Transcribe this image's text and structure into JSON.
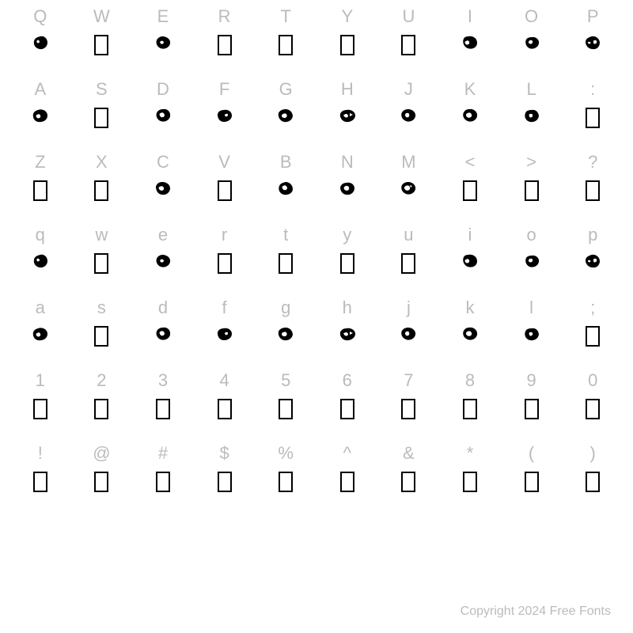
{
  "copyright": "Copyright 2024 Free Fonts",
  "label_color": "#bbbbbb",
  "glyph_border_color": "#000000",
  "blob_fill_color": "#000000",
  "background_color": "#ffffff",
  "label_fontsize": 22,
  "copyright_fontsize": 16,
  "rows": [
    [
      {
        "label": "Q",
        "type": "blob",
        "variant": 1
      },
      {
        "label": "W",
        "type": "box"
      },
      {
        "label": "E",
        "type": "blob",
        "variant": 2
      },
      {
        "label": "R",
        "type": "box"
      },
      {
        "label": "T",
        "type": "box"
      },
      {
        "label": "Y",
        "type": "box"
      },
      {
        "label": "U",
        "type": "box"
      },
      {
        "label": "I",
        "type": "blob",
        "variant": 3
      },
      {
        "label": "O",
        "type": "blob",
        "variant": 4
      },
      {
        "label": "P",
        "type": "blob",
        "variant": 5
      }
    ],
    [
      {
        "label": "A",
        "type": "blob",
        "variant": 6
      },
      {
        "label": "S",
        "type": "box"
      },
      {
        "label": "D",
        "type": "blob",
        "variant": 7
      },
      {
        "label": "F",
        "type": "blob",
        "variant": 8
      },
      {
        "label": "G",
        "type": "blob",
        "variant": 9
      },
      {
        "label": "H",
        "type": "blob",
        "variant": 10
      },
      {
        "label": "J",
        "type": "blob",
        "variant": 11
      },
      {
        "label": "K",
        "type": "blob",
        "variant": 12
      },
      {
        "label": "L",
        "type": "blob",
        "variant": 13
      },
      {
        "label": ":",
        "type": "box"
      }
    ],
    [
      {
        "label": "Z",
        "type": "box"
      },
      {
        "label": "X",
        "type": "box"
      },
      {
        "label": "C",
        "type": "blob",
        "variant": 14
      },
      {
        "label": "V",
        "type": "box"
      },
      {
        "label": "B",
        "type": "blob",
        "variant": 15
      },
      {
        "label": "N",
        "type": "blob",
        "variant": 16
      },
      {
        "label": "M",
        "type": "blob",
        "variant": 17
      },
      {
        "label": "<",
        "type": "box"
      },
      {
        "label": ">",
        "type": "box"
      },
      {
        "label": "?",
        "type": "box"
      }
    ],
    [
      {
        "label": "q",
        "type": "blob",
        "variant": 1
      },
      {
        "label": "w",
        "type": "box"
      },
      {
        "label": "e",
        "type": "blob",
        "variant": 2
      },
      {
        "label": "r",
        "type": "box"
      },
      {
        "label": "t",
        "type": "box"
      },
      {
        "label": "y",
        "type": "box"
      },
      {
        "label": "u",
        "type": "box"
      },
      {
        "label": "i",
        "type": "blob",
        "variant": 3
      },
      {
        "label": "o",
        "type": "blob",
        "variant": 4
      },
      {
        "label": "p",
        "type": "blob",
        "variant": 5
      }
    ],
    [
      {
        "label": "a",
        "type": "blob",
        "variant": 6
      },
      {
        "label": "s",
        "type": "box"
      },
      {
        "label": "d",
        "type": "blob",
        "variant": 7
      },
      {
        "label": "f",
        "type": "blob",
        "variant": 8
      },
      {
        "label": "g",
        "type": "blob",
        "variant": 9
      },
      {
        "label": "h",
        "type": "blob",
        "variant": 10
      },
      {
        "label": "j",
        "type": "blob",
        "variant": 11
      },
      {
        "label": "k",
        "type": "blob",
        "variant": 12
      },
      {
        "label": "l",
        "type": "blob",
        "variant": 13
      },
      {
        "label": ";",
        "type": "box"
      }
    ],
    [
      {
        "label": "1",
        "type": "box"
      },
      {
        "label": "2",
        "type": "box"
      },
      {
        "label": "3",
        "type": "box"
      },
      {
        "label": "4",
        "type": "box"
      },
      {
        "label": "5",
        "type": "box"
      },
      {
        "label": "6",
        "type": "box"
      },
      {
        "label": "7",
        "type": "box"
      },
      {
        "label": "8",
        "type": "box"
      },
      {
        "label": "9",
        "type": "box"
      },
      {
        "label": "0",
        "type": "box"
      }
    ],
    [
      {
        "label": "!",
        "type": "box"
      },
      {
        "label": "@",
        "type": "box"
      },
      {
        "label": "#",
        "type": "box"
      },
      {
        "label": "$",
        "type": "box"
      },
      {
        "label": "%",
        "type": "box"
      },
      {
        "label": "^",
        "type": "box"
      },
      {
        "label": "&",
        "type": "box"
      },
      {
        "label": "*",
        "type": "box"
      },
      {
        "label": "(",
        "type": "box"
      },
      {
        "label": ")",
        "type": "box"
      }
    ]
  ]
}
